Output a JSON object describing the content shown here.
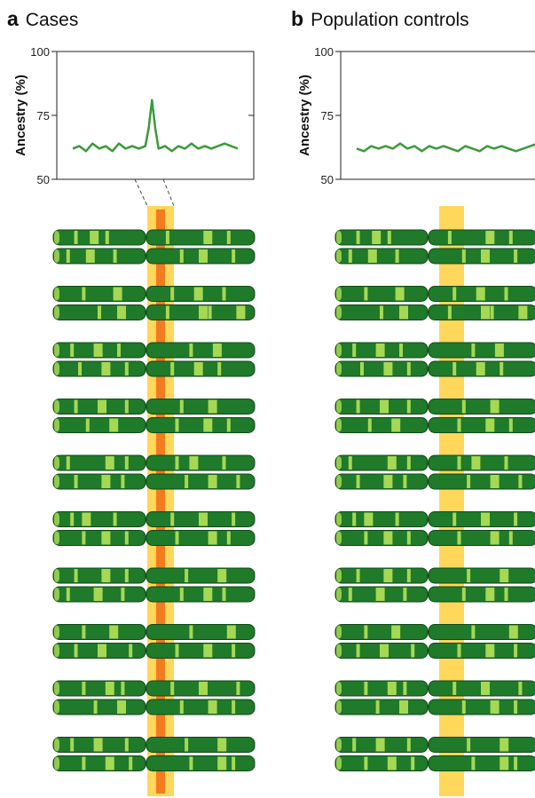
{
  "panels": [
    {
      "letter": "a",
      "title": "Cases",
      "ylabel": "Ancestry (%)",
      "yticks": [
        "100",
        "75",
        "50"
      ],
      "has_peak": true,
      "highlight_stripe_color": "#f47a20"
    },
    {
      "letter": "b",
      "title": "Population controls",
      "ylabel": "Ancestry (%)",
      "yticks": [
        "100",
        "75",
        "50"
      ],
      "has_peak": false
    }
  ],
  "colors": {
    "chromosome_dark": "#1f7a2a",
    "chromosome_outline": "#0f4a16",
    "segment_light": "#a6d854",
    "locus_band": "#ffd75a",
    "case_marker": "#f47a20",
    "ancestry_line": "#3a9a3a"
  },
  "chart_data": [
    {
      "type": "line",
      "title": "Cases",
      "ylabel": "Ancestry (%)",
      "ylim": [
        50,
        100
      ],
      "yticks": [
        50,
        75,
        100
      ],
      "x": [
        0,
        0.04,
        0.08,
        0.12,
        0.16,
        0.2,
        0.24,
        0.28,
        0.32,
        0.36,
        0.4,
        0.44,
        0.46,
        0.48,
        0.5,
        0.52,
        0.56,
        0.6,
        0.64,
        0.68,
        0.72,
        0.76,
        0.8,
        0.84,
        0.88,
        0.92,
        0.96,
        1.0
      ],
      "series": [
        {
          "values": [
            62,
            63,
            61,
            64,
            62,
            63,
            61,
            64,
            62,
            63,
            62,
            63,
            70,
            81,
            70,
            62,
            63,
            61,
            63,
            62,
            64,
            62,
            63,
            62,
            63,
            64,
            63,
            62
          ]
        }
      ]
    },
    {
      "type": "line",
      "title": "Population controls",
      "ylabel": "Ancestry (%)",
      "ylim": [
        50,
        100
      ],
      "yticks": [
        50,
        75,
        100
      ],
      "x": [
        0,
        0.04,
        0.08,
        0.12,
        0.16,
        0.2,
        0.24,
        0.28,
        0.32,
        0.36,
        0.4,
        0.44,
        0.48,
        0.52,
        0.56,
        0.6,
        0.64,
        0.68,
        0.72,
        0.76,
        0.8,
        0.84,
        0.88,
        0.92,
        0.96,
        1.0
      ],
      "series": [
        {
          "values": [
            62,
            61,
            63,
            62,
            63,
            62,
            64,
            62,
            63,
            61,
            63,
            62,
            63,
            62,
            61,
            63,
            62,
            61,
            63,
            62,
            63,
            62,
            61,
            62,
            63,
            64
          ]
        }
      ]
    }
  ],
  "chromosome_pairs": [
    [
      [
        [
          0.2,
          0.4,
          0.6
        ],
        [
          0.15,
          0.55,
          0.8
        ]
      ],
      [
        [
          0.1,
          0.35,
          0.7
        ],
        [
          0.3,
          0.5,
          0.85
        ]
      ]
    ],
    [
      [
        [
          0.3,
          0.7
        ],
        [
          0.2,
          0.45,
          0.75
        ]
      ],
      [
        [
          0.5,
          0.75
        ],
        [
          0.15,
          0.5,
          0.6,
          0.9
        ]
      ]
    ],
    [
      [
        [
          0.15,
          0.45,
          0.75
        ],
        [
          0.4,
          0.65
        ]
      ],
      [
        [
          0.25,
          0.55,
          0.85
        ],
        [
          0.2,
          0.45,
          0.7
        ]
      ]
    ],
    [
      [
        [
          0.2,
          0.5,
          0.85
        ],
        [
          0.3,
          0.6
        ]
      ],
      [
        [
          0.35,
          0.65
        ],
        [
          0.25,
          0.55,
          0.8
        ]
      ]
    ],
    [
      [
        [
          0.1,
          0.6,
          0.85
        ],
        [
          0.25,
          0.4,
          0.75
        ]
      ],
      [
        [
          0.2,
          0.55,
          0.8
        ],
        [
          0.35,
          0.6,
          0.9
        ]
      ]
    ],
    [
      [
        [
          0.15,
          0.3,
          0.7
        ],
        [
          0.2,
          0.5,
          0.85
        ]
      ],
      [
        [
          0.3,
          0.55,
          0.85
        ],
        [
          0.25,
          0.6,
          0.8
        ]
      ]
    ],
    [
      [
        [
          0.2,
          0.55,
          0.85
        ],
        [
          0.35,
          0.7
        ]
      ],
      [
        [
          0.1,
          0.45,
          0.8
        ],
        [
          0.3,
          0.55,
          0.75
        ]
      ]
    ],
    [
      [
        [
          0.3,
          0.65
        ],
        [
          0.4,
          0.8
        ]
      ],
      [
        [
          0.2,
          0.5,
          0.9
        ],
        [
          0.25,
          0.55,
          0.85
        ]
      ]
    ],
    [
      [
        [
          0.3,
          0.6,
          0.8
        ],
        [
          0.2,
          0.5,
          0.9
        ]
      ],
      [
        [
          0.45,
          0.75
        ],
        [
          0.3,
          0.6,
          0.85
        ]
      ]
    ],
    [
      [
        [
          0.15,
          0.45,
          0.85
        ],
        [
          0.35,
          0.7
        ]
      ],
      [
        [
          0.3,
          0.6,
          0.9
        ],
        [
          0.4,
          0.7,
          0.85
        ]
      ]
    ]
  ]
}
